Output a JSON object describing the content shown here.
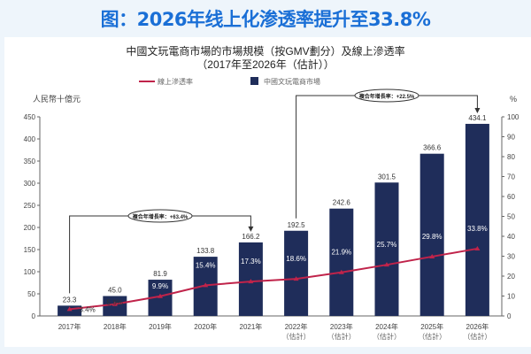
{
  "headline": "图：2026年线上化渗透率提升至33.8%",
  "chart_data": {
    "type": "bar+line",
    "title": "中國文玩電商市場的市場規模（按GMV劃分）及線上滲透率",
    "subtitle": "（2017年至2026年（估計））",
    "ylabel_left": "人民幣十億元",
    "ylabel_right": "%",
    "ylim_left": [
      0,
      450
    ],
    "ylim_right": [
      0,
      100
    ],
    "yticks_left": [
      0,
      50,
      100,
      150,
      200,
      250,
      300,
      350,
      400,
      450
    ],
    "yticks_right": [
      0,
      10,
      20,
      30,
      40,
      50,
      60,
      70,
      80,
      90,
      100
    ],
    "categories": [
      [
        "2017年",
        ""
      ],
      [
        "2018年",
        ""
      ],
      [
        "2019年",
        ""
      ],
      [
        "2020年",
        ""
      ],
      [
        "2021年",
        ""
      ],
      [
        "2022年",
        "（估計）"
      ],
      [
        "2023年",
        "（估計）"
      ],
      [
        "2024年",
        "（估計）"
      ],
      [
        "2025年",
        "（估計）"
      ],
      [
        "2026年",
        "（估計）"
      ]
    ],
    "series": [
      {
        "name": "中國文玩電商市場",
        "type": "bar",
        "axis": "left",
        "color": "#1f2d5a",
        "values": [
          23.3,
          45.0,
          81.9,
          133.8,
          166.2,
          192.5,
          242.6,
          301.5,
          366.6,
          434.1
        ],
        "labels": [
          "23.3",
          "45.0",
          "81.9",
          "133.8",
          "166.2",
          "192.5",
          "242.6",
          "301.5",
          "366.6",
          "434.1"
        ]
      },
      {
        "name": "線上滲透率",
        "type": "line",
        "axis": "right",
        "color": "#c0234a",
        "values": [
          3.4,
          5.9,
          9.9,
          15.4,
          17.3,
          18.6,
          21.9,
          25.7,
          29.8,
          33.8
        ],
        "labels": [
          "3.4%",
          "5.9%",
          "9.9%",
          "15.4%",
          "17.3%",
          "18.6%",
          "21.9%",
          "25.7%",
          "29.8%",
          "33.8%"
        ]
      }
    ],
    "annotations": [
      {
        "text": "複合年增長率：+63.4%",
        "from": "2017年",
        "to": "2021年"
      },
      {
        "text": "複合年增長率：+22.5%",
        "from": "2022年",
        "to": "2026年"
      }
    ],
    "legend_placement": "top",
    "grid": false
  }
}
